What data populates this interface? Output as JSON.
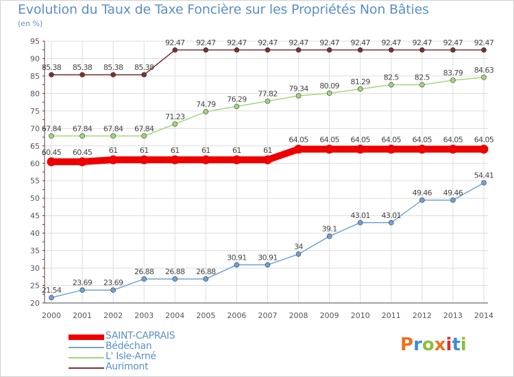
{
  "title": "Evolution du Taux de Taxe Foncière sur les Propriétés Non Bâties",
  "unit_label": "(en %)",
  "logo_text": "Proxiti",
  "logo_colors": [
    "#e8731f",
    "#3f8fd0",
    "#8bbf3a",
    "#e8731f",
    "#d23030",
    "#3f8fd0",
    "#8bbf3a"
  ],
  "chart_data": {
    "type": "line",
    "title": "Evolution du Taux de Taxe Foncière sur les Propriétés Non Bâties",
    "ylabel": "(en %)",
    "xlabel": "",
    "categories": [
      "2000",
      "2001",
      "2002",
      "2003",
      "2004",
      "2005",
      "2006",
      "2007",
      "2008",
      "2009",
      "2010",
      "2011",
      "2012",
      "2013",
      "2014"
    ],
    "ylim": [
      20,
      95
    ],
    "yticks": [
      "20",
      "25",
      "30",
      "35",
      "40",
      "45",
      "50",
      "55",
      "60",
      "65",
      "70",
      "75",
      "80",
      "85",
      "90",
      "95"
    ],
    "grid": true,
    "legend_position": "bottom-left",
    "series": [
      {
        "name": "SAINT-CAPRAIS",
        "color": "#ee0000",
        "highlight": true,
        "values": [
          60.45,
          60.45,
          61,
          61,
          61,
          61,
          61,
          61,
          64.05,
          64.05,
          64.05,
          64.05,
          64.05,
          64.05,
          64.05
        ],
        "labels": [
          "60.45",
          "60.45",
          "61",
          "61",
          "61",
          "61",
          "61",
          "61",
          "64.05",
          "64.05",
          "64.05",
          "64.05",
          "64.05",
          "64.05",
          "64.05"
        ]
      },
      {
        "name": "Bédéchan",
        "color": "#6fa2d4",
        "highlight": false,
        "values": [
          21.54,
          23.69,
          23.69,
          26.88,
          26.88,
          26.88,
          30.91,
          30.91,
          34,
          39.1,
          43.01,
          43.01,
          49.46,
          49.46,
          54.41
        ],
        "labels": [
          "21.54",
          "23.69",
          "23.69",
          "26.88",
          "26.88",
          "26.88",
          "30.91",
          "30.91",
          "34",
          "39.1",
          "43.01",
          "43.01",
          "49.46",
          "49.46",
          "54.41"
        ]
      },
      {
        "name": "L' Isle-Arné",
        "color": "#a3d67a",
        "highlight": false,
        "values": [
          67.84,
          67.84,
          67.84,
          67.84,
          71.23,
          74.79,
          76.29,
          77.82,
          79.34,
          80.09,
          81.29,
          82.5,
          82.5,
          83.79,
          84.63
        ],
        "labels": [
          "67.84",
          "67.84",
          "67.84",
          "67.84",
          "71.23",
          "74.79",
          "76.29",
          "77.82",
          "79.34",
          "80.09",
          "81.29",
          "82.5",
          "82.5",
          "83.79",
          "84.63"
        ]
      },
      {
        "name": "Aurimont",
        "color": "#7a3030",
        "highlight": false,
        "values": [
          85.38,
          85.38,
          85.38,
          85.38,
          92.47,
          92.47,
          92.47,
          92.47,
          92.47,
          92.47,
          92.47,
          92.47,
          92.47,
          92.47,
          92.47
        ],
        "labels": [
          "85.38",
          "85.38",
          "85.38",
          "85.38",
          "92.47",
          "92.47",
          "92.47",
          "92.47",
          "92.47",
          "92.47",
          "92.47",
          "92.47",
          "92.47",
          "92.47",
          "92.47"
        ]
      }
    ]
  }
}
